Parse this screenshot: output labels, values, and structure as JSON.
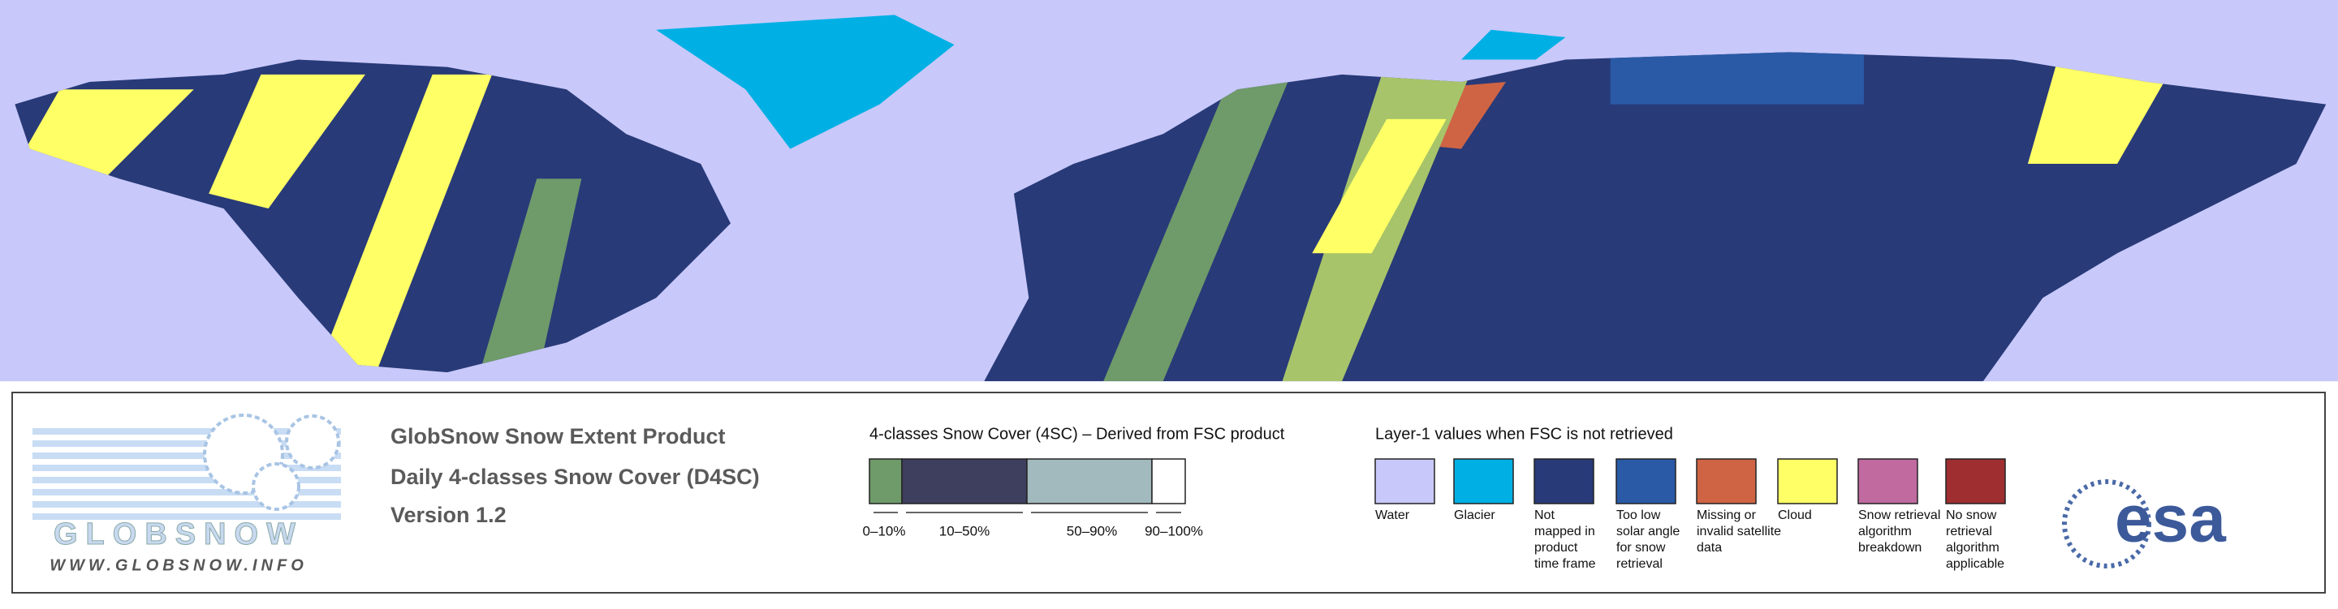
{
  "header": {
    "lines": [
      "GlobSnow Snow Extent Product",
      "Daily 4-classes Snow Cover (D4SC)",
      "Version 1.2"
    ]
  },
  "logo": {
    "name": "GLOBSNOW",
    "url": "WWW.GLOBSNOW.INFO",
    "agency": "esa"
  },
  "snow_cover_legend": {
    "title": "4-classes Snow Cover (4SC) – Derived from FSC product",
    "classes": [
      {
        "label": "0–10%",
        "color": "#6f9a6a"
      },
      {
        "label": "10–50%",
        "color": "#3e3f5e"
      },
      {
        "label": "50–90%",
        "color": "#a2b9be"
      },
      {
        "label": "90–100%",
        "color": "#ffffff"
      }
    ]
  },
  "layer_legend": {
    "title": "Layer-1 values when FSC is not retrieved",
    "items": [
      {
        "lines": [
          "Water"
        ],
        "color": "#c8c8fa"
      },
      {
        "lines": [
          "Glacier"
        ],
        "color": "#00b0e4"
      },
      {
        "lines": [
          "Not",
          "mapped in",
          "product",
          "time frame"
        ],
        "color": "#283a78"
      },
      {
        "lines": [
          "Too low",
          "solar angle",
          "for snow",
          "retrieval"
        ],
        "color": "#2a5aa6"
      },
      {
        "lines": [
          "Missing or",
          "invalid satellite",
          "data"
        ],
        "color": "#cf6444"
      },
      {
        "lines": [
          "Cloud"
        ],
        "color": "#ffff66"
      },
      {
        "lines": [
          "Snow retrieval",
          "algorithm",
          "breakdown"
        ],
        "color": "#c06aa0"
      },
      {
        "lines": [
          "No snow",
          "retrieval",
          "algorithm",
          "applicable"
        ],
        "color": "#9e2e30"
      }
    ]
  }
}
